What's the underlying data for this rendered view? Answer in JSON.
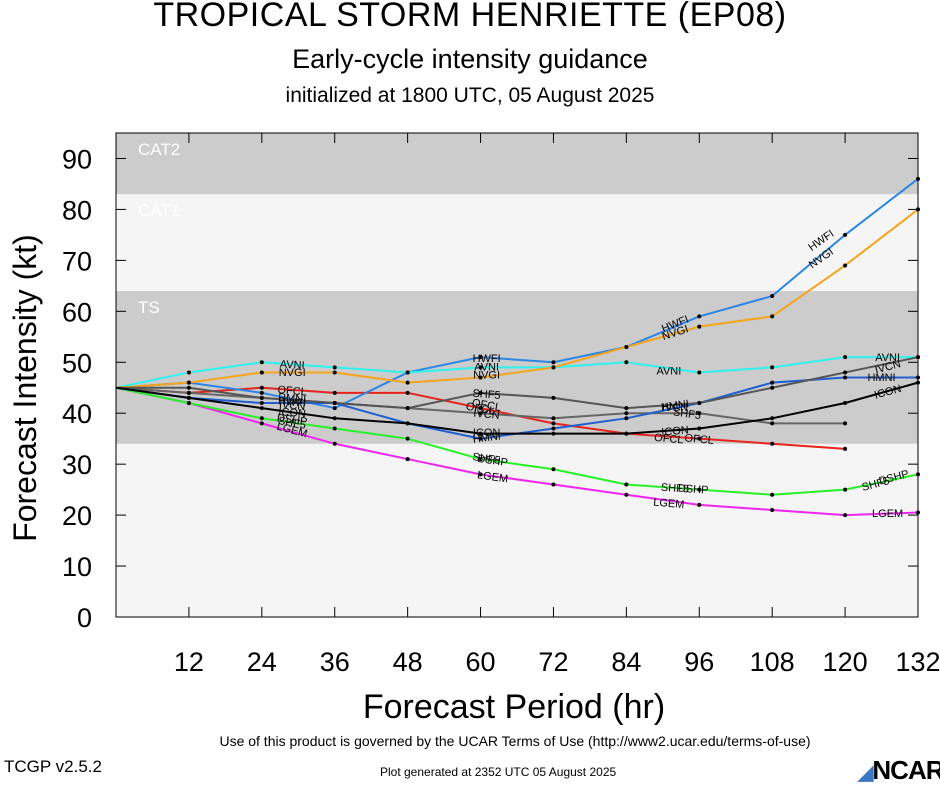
{
  "header": {
    "title": "TROPICAL STORM HENRIETTE (EP08)",
    "subtitle": "Early-cycle intensity guidance",
    "init": "initialized at 1800 UTC, 05 August 2025"
  },
  "footer": {
    "terms": "Use of this product is governed by the UCAR Terms of Use (http://www2.ucar.edu/terms-of-use)",
    "version": "TCGP v2.5.2",
    "generated": "Plot generated at 2352 UTC   05 August 2025",
    "logo": "NCAR"
  },
  "chart_data": {
    "type": "line",
    "xlabel": "Forecast Period (hr)",
    "ylabel": "Forecast Intensity (kt)",
    "xlim": [
      0,
      132
    ],
    "ylim": [
      0,
      95
    ],
    "xticks": [
      12,
      24,
      36,
      48,
      60,
      72,
      84,
      96,
      108,
      120,
      132
    ],
    "yticks": [
      0,
      10,
      20,
      30,
      40,
      50,
      60,
      70,
      80,
      90
    ],
    "bands": [
      {
        "label": "",
        "from": 0,
        "to": 34,
        "color": "#f5f5f5"
      },
      {
        "label": "TS",
        "from": 34,
        "to": 64,
        "color": "#cccccc"
      },
      {
        "label": "CAT1",
        "from": 64,
        "to": 83,
        "color": "#f5f5f5"
      },
      {
        "label": "CAT2",
        "from": 83,
        "to": 95,
        "color": "#cccccc"
      }
    ],
    "series": [
      {
        "name": "OFCL",
        "color": "#e8221c",
        "x": [
          0,
          12,
          24,
          36,
          48,
          60,
          72,
          84,
          96,
          108,
          120
        ],
        "y": [
          45,
          44,
          45,
          44,
          44,
          41,
          38,
          36,
          35,
          34,
          33
        ]
      },
      {
        "name": "LGEM",
        "color": "#f026ef",
        "x": [
          0,
          12,
          24,
          36,
          48,
          60,
          72,
          84,
          96,
          108,
          120,
          132
        ],
        "y": [
          45,
          42,
          38,
          34,
          31,
          28,
          26,
          24,
          22,
          21,
          20,
          20.5
        ]
      },
      {
        "name": "DSHP",
        "color": "#26f026",
        "x": [
          0,
          12,
          24,
          36,
          48,
          60,
          72,
          84,
          96,
          108,
          120,
          132
        ],
        "y": [
          45,
          42,
          39,
          37,
          35,
          31,
          29,
          26,
          25,
          24,
          25,
          28
        ]
      },
      {
        "name": "SHF5",
        "color": "#666666",
        "x": [
          0,
          12,
          24,
          36,
          48,
          60,
          72,
          84,
          96,
          108,
          120
        ],
        "y": [
          45,
          44,
          43,
          42,
          41,
          40,
          39,
          40,
          40,
          38,
          38
        ]
      },
      {
        "name": "HWFI",
        "color": "#2b86e6",
        "x": [
          0,
          12,
          24,
          36,
          48,
          60,
          72,
          84,
          96,
          108,
          120,
          132
        ],
        "y": [
          45,
          46,
          44,
          41,
          48,
          51,
          50,
          53,
          59,
          63,
          75,
          86
        ]
      },
      {
        "name": "AVNI",
        "color": "#2ef2ef",
        "x": [
          0,
          12,
          24,
          36,
          48,
          60,
          72,
          84,
          96,
          108,
          120,
          132
        ],
        "y": [
          45,
          48,
          50,
          49,
          48,
          49,
          49,
          50,
          48,
          49,
          51,
          51
        ]
      },
      {
        "name": "NVGI",
        "color": "#f5a41c",
        "x": [
          0,
          12,
          24,
          36,
          48,
          60,
          72,
          84,
          96,
          108,
          120,
          132
        ],
        "y": [
          45,
          46,
          48,
          48,
          46,
          47,
          49,
          53,
          57,
          59,
          69,
          80
        ]
      },
      {
        "name": "HMNI",
        "color": "#1f5fcf",
        "x": [
          0,
          12,
          24,
          36,
          48,
          60,
          72,
          84,
          96,
          108,
          120,
          132
        ],
        "y": [
          45,
          43,
          42,
          42,
          38,
          35,
          37,
          39,
          42,
          46,
          47,
          47
        ]
      },
      {
        "name": "IVCN",
        "color": "#555555",
        "x": [
          0,
          12,
          24,
          36,
          48,
          60,
          72,
          84,
          96,
          108,
          120,
          132
        ],
        "y": [
          45,
          45,
          43,
          42,
          41,
          44,
          43,
          41,
          42,
          45,
          48,
          51
        ]
      },
      {
        "name": "ICON",
        "color": "#000000",
        "x": [
          0,
          12,
          24,
          36,
          48,
          60,
          72,
          84,
          96,
          108,
          120,
          132
        ],
        "y": [
          45,
          43,
          41,
          39,
          38,
          36,
          36,
          36,
          37,
          39,
          42,
          46
        ]
      }
    ],
    "annotations": [
      {
        "text": "OFCL",
        "x": 29,
        "y": 44.5,
        "rot": -5
      },
      {
        "text": "OFCL",
        "x": 60,
        "y": 41,
        "rot": -10
      },
      {
        "text": "OFCL",
        "x": 96,
        "y": 35,
        "rot": -5
      },
      {
        "text": "RMNI",
        "x": 29,
        "y": 43,
        "rot": -5
      },
      {
        "text": "HWFI",
        "x": 29,
        "y": 42.3,
        "rot": -5
      },
      {
        "text": "IVCN",
        "x": 29,
        "y": 41.6,
        "rot": -5
      },
      {
        "text": "ICON",
        "x": 29,
        "y": 40.2,
        "rot": -5
      },
      {
        "text": "DSHP",
        "x": 29,
        "y": 38.8,
        "rot": -8
      },
      {
        "text": "SHF5",
        "x": 29,
        "y": 38.2,
        "rot": -10
      },
      {
        "text": "LGEM",
        "x": 29,
        "y": 36.8,
        "rot": -15
      },
      {
        "text": "AVNI",
        "x": 29,
        "y": 49.6,
        "rot": -3
      },
      {
        "text": "NVGI",
        "x": 29,
        "y": 48.1,
        "rot": 0
      },
      {
        "text": "HWFI",
        "x": 61,
        "y": 50.8,
        "rot": 0
      },
      {
        "text": "AVNI",
        "x": 61,
        "y": 49.2,
        "rot": 0
      },
      {
        "text": "NVGI",
        "x": 61,
        "y": 47.6,
        "rot": 0
      },
      {
        "text": "SHF5",
        "x": 61,
        "y": 43.8,
        "rot": -5
      },
      {
        "text": "OFCL",
        "x": 61,
        "y": 41.7,
        "rot": -10
      },
      {
        "text": "IVCN",
        "x": 61,
        "y": 39.9,
        "rot": -5
      },
      {
        "text": "ICON",
        "x": 61,
        "y": 36.3,
        "rot": 0
      },
      {
        "text": "HMNI",
        "x": 61,
        "y": 35.3,
        "rot": 8
      },
      {
        "text": "DSHP",
        "x": 62,
        "y": 30.8,
        "rot": -8
      },
      {
        "text": "SHF5",
        "x": 61,
        "y": 31.2,
        "rot": -8
      },
      {
        "text": "LGEM",
        "x": 62,
        "y": 27.6,
        "rot": -8
      },
      {
        "text": "HWFI",
        "x": 92,
        "y": 57.6,
        "rot": 22
      },
      {
        "text": "NVGI",
        "x": 92,
        "y": 55.9,
        "rot": 18
      },
      {
        "text": "AVNI",
        "x": 91,
        "y": 48.4,
        "rot": 0
      },
      {
        "text": "HMNI",
        "x": 92,
        "y": 41.6,
        "rot": 8
      },
      {
        "text": "IVCN",
        "x": 92,
        "y": 41.2,
        "rot": 0
      },
      {
        "text": "SHF5",
        "x": 94,
        "y": 40,
        "rot": -8
      },
      {
        "text": "ICON",
        "x": 92,
        "y": 36.6,
        "rot": 5
      },
      {
        "text": "OFCL",
        "x": 91,
        "y": 35.1,
        "rot": -5
      },
      {
        "text": "DSHP",
        "x": 95,
        "y": 25.2,
        "rot": -4
      },
      {
        "text": "SHF5",
        "x": 92,
        "y": 25.4,
        "rot": -4
      },
      {
        "text": "LGEM",
        "x": 91,
        "y": 22.4,
        "rot": -5
      },
      {
        "text": "HWFI",
        "x": 116,
        "y": 74,
        "rot": 35
      },
      {
        "text": "NVGI",
        "x": 116,
        "y": 70.5,
        "rot": 35
      },
      {
        "text": "AVNI",
        "x": 127,
        "y": 51,
        "rot": 0
      },
      {
        "text": "IVCN",
        "x": 127,
        "y": 49.2,
        "rot": 15
      },
      {
        "text": "HMNI",
        "x": 126,
        "y": 47.1,
        "rot": 0
      },
      {
        "text": "ICON",
        "x": 127,
        "y": 44.3,
        "rot": 15
      },
      {
        "text": "DSHP",
        "x": 128,
        "y": 27.5,
        "rot": 15
      },
      {
        "text": "SHF5",
        "x": 125,
        "y": 26.2,
        "rot": 15
      },
      {
        "text": "LGEM",
        "x": 127,
        "y": 20.4,
        "rot": 0
      }
    ]
  }
}
